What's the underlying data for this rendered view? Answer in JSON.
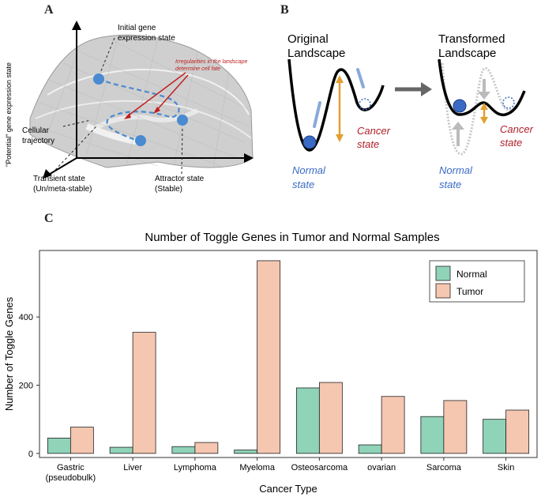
{
  "panel_a": {
    "letter": "A",
    "y_axis_label": "\"Potential\" gene expression state",
    "initial_state": [
      "Initial gene",
      "expression state"
    ],
    "irregularities": [
      "Irregularities in the landscape",
      "determine cell fate"
    ],
    "cellular_trajectory": [
      "Cellular",
      "trajectory"
    ],
    "transient_state": [
      "Transient state",
      "(Un/meta-stable)"
    ],
    "attractor_state": [
      "Attractor state",
      "(Stable)"
    ]
  },
  "panel_b": {
    "letter": "B",
    "original_title": [
      "Original",
      "Landscape"
    ],
    "transformed_title": [
      "Transformed",
      "Landscape"
    ],
    "cancer_state": [
      "Cancer",
      "state"
    ],
    "normal_state": [
      "Normal",
      "state"
    ],
    "colors": {
      "normal": "#3a6bc4",
      "cancer": "#b0202a",
      "arrow": "#e0a030"
    }
  },
  "panel_c": {
    "letter": "C"
  },
  "chart_data": {
    "type": "bar",
    "title": "Number of Toggle Genes in Tumor and Normal Samples",
    "xlabel": "Cancer Type",
    "ylabel": "Number of Toggle Genes",
    "categories": [
      "Gastric\n(pseudobulk)",
      "Liver",
      "Lymphoma",
      "Myeloma",
      "Osteosarcoma",
      "ovarian",
      "Sarcoma",
      "Skin"
    ],
    "series": [
      {
        "name": "Normal",
        "color": "#8fd3b8",
        "values": [
          45,
          18,
          20,
          10,
          192,
          25,
          108,
          100
        ]
      },
      {
        "name": "Tumor",
        "color": "#f5c6b0",
        "values": [
          77,
          355,
          32,
          565,
          208,
          167,
          155,
          127
        ]
      }
    ],
    "yticks": [
      0,
      200,
      400
    ],
    "ylim": [
      -12,
      595
    ],
    "legend_position": "top-right"
  }
}
